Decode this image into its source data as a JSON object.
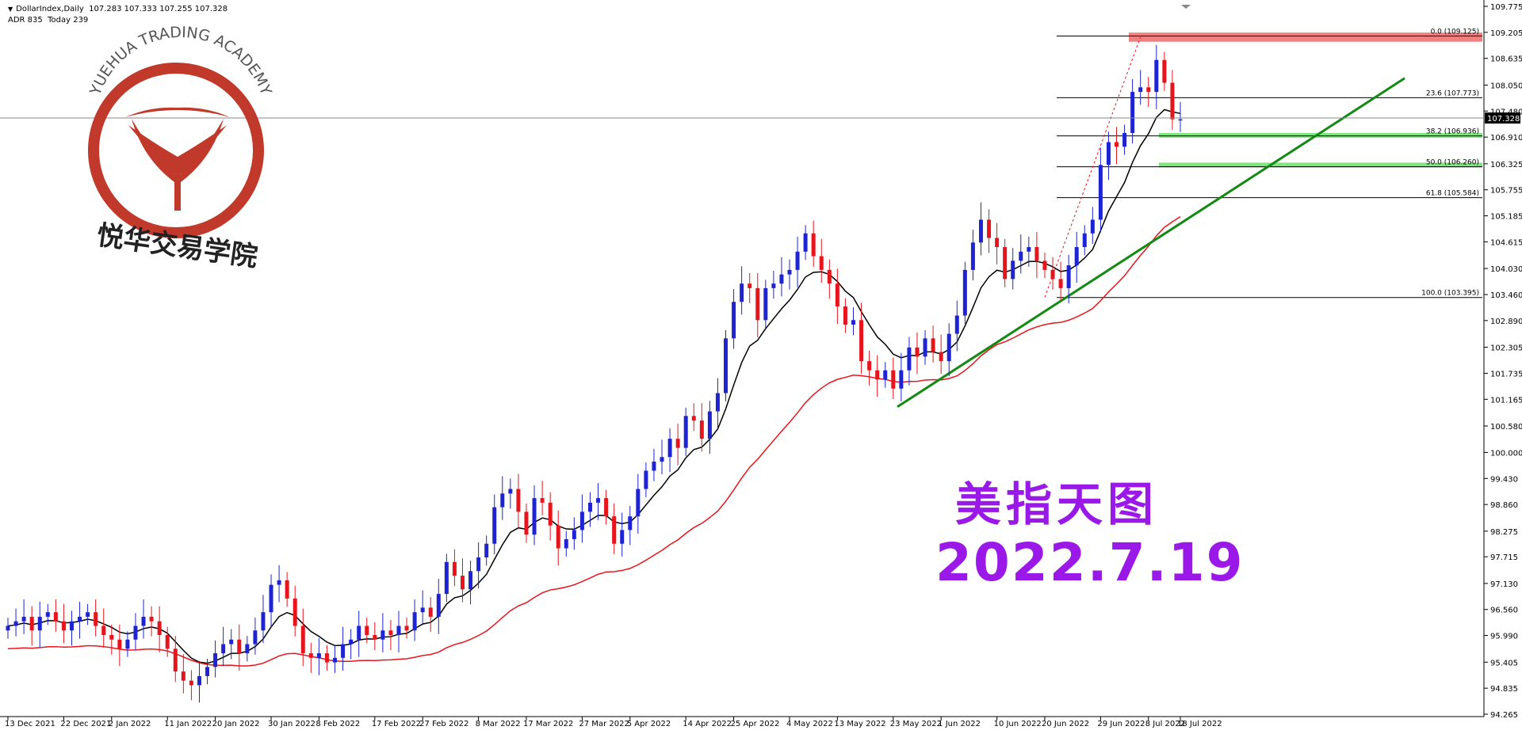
{
  "header": {
    "symbol_line": "DollarIndex,Daily  107.283 107.333 107.255 107.328",
    "stats_line": "ADR 835  Today 239"
  },
  "logo": {
    "arc_text": "YUEHUA TRADING ACADEMY",
    "cn_name": "悦华交易学院",
    "color": "#c0392b"
  },
  "annotation": {
    "title": "美指天图",
    "date": "2022.7.19",
    "color": "#9b19e8"
  },
  "chart_data": {
    "type": "candlestick",
    "title": "DollarIndex,Daily",
    "timeframe": "Daily",
    "ohlc_current": {
      "open": 107.283,
      "high": 107.333,
      "low": 107.255,
      "close": 107.328
    },
    "current_price_label": "107.328",
    "y_ticks": [
      "109.775",
      "109.205",
      "108.635",
      "108.050",
      "107.480",
      "106.910",
      "106.325",
      "105.755",
      "105.185",
      "104.615",
      "104.030",
      "103.460",
      "102.890",
      "102.305",
      "101.735",
      "101.165",
      "100.580",
      "100.000",
      "99.430",
      "98.860",
      "98.275",
      "97.715",
      "97.130",
      "96.560",
      "95.990",
      "95.405",
      "94.835",
      "94.265"
    ],
    "ylim": [
      94.265,
      109.775
    ],
    "x_ticks": [
      "13 Dec 2021",
      "22 Dec 2021",
      "2 Jan 2022",
      "11 Jan 2022",
      "20 Jan 2022",
      "30 Jan 2022",
      "8 Feb 2022",
      "17 Feb 2022",
      "27 Feb 2022",
      "8 Mar 2022",
      "17 Mar 2022",
      "27 Mar 2022",
      "5 Apr 2022",
      "14 Apr 2022",
      "25 Apr 2022",
      "4 May 2022",
      "13 May 2022",
      "23 May 2022",
      "1 Jun 2022",
      "10 Jun 2022",
      "20 Jun 2022",
      "29 Jun 2022",
      "8 Jul 2022",
      "18 Jul 2022"
    ],
    "closes": [
      96.2,
      96.3,
      96.4,
      96.1,
      96.4,
      96.5,
      96.3,
      96.1,
      96.3,
      96.4,
      96.5,
      96.2,
      96.0,
      95.9,
      95.7,
      95.9,
      96.2,
      96.4,
      96.3,
      96.0,
      95.7,
      95.2,
      95.0,
      94.9,
      95.1,
      95.3,
      95.6,
      95.8,
      95.9,
      95.6,
      95.8,
      96.1,
      96.5,
      97.1,
      97.2,
      96.8,
      96.2,
      95.6,
      95.5,
      95.6,
      95.4,
      95.5,
      95.8,
      95.9,
      96.2,
      96.0,
      95.9,
      96.1,
      96.0,
      96.2,
      96.1,
      96.5,
      96.6,
      96.4,
      96.9,
      97.6,
      97.3,
      97.0,
      97.4,
      97.7,
      98.0,
      98.8,
      99.1,
      99.2,
      98.7,
      98.2,
      99.0,
      98.9,
      98.4,
      97.9,
      98.1,
      98.3,
      98.7,
      98.9,
      99.0,
      98.6,
      98.0,
      98.3,
      98.6,
      99.2,
      99.6,
      99.8,
      99.9,
      100.3,
      100.1,
      100.8,
      100.7,
      100.3,
      100.9,
      101.3,
      102.5,
      103.3,
      103.7,
      103.6,
      102.9,
      103.6,
      103.7,
      103.9,
      104.0,
      104.4,
      104.8,
      104.3,
      104.0,
      103.7,
      103.2,
      102.8,
      102.9,
      102.0,
      101.8,
      101.6,
      101.8,
      101.4,
      101.8,
      102.3,
      102.1,
      102.5,
      102.2,
      102.0,
      102.6,
      103.0,
      104.0,
      104.6,
      105.1,
      104.7,
      104.5,
      103.8,
      104.2,
      104.4,
      104.5,
      104.2,
      104.0,
      103.8,
      103.6,
      104.1,
      104.5,
      104.8,
      105.1,
      106.3,
      106.8,
      106.7,
      107.0,
      107.9,
      108.0,
      107.9,
      108.6,
      108.1,
      107.3,
      107.3
    ],
    "ema_fast_name": "EMA black",
    "ema_slow_name": "EMA red",
    "fibonacci": [
      {
        "level": "0.0",
        "price": 109.125,
        "label": "0.0 (109.125)"
      },
      {
        "level": "23.6",
        "price": 107.773,
        "label": "23.6 (107.773)"
      },
      {
        "level": "38.2",
        "price": 106.936,
        "label": "38.2 (106.936)"
      },
      {
        "level": "50.0",
        "price": 106.26,
        "label": "50.0 (106.260)"
      },
      {
        "level": "61.8",
        "price": 105.584,
        "label": "61.8 (105.584)"
      },
      {
        "level": "100.0",
        "price": 103.395,
        "label": "100.0 (103.395)"
      }
    ],
    "zones": [
      {
        "name": "resistance",
        "from": 109.0,
        "to": 109.2,
        "color": "#f08080"
      },
      {
        "name": "support-1",
        "from": 106.9,
        "to": 107.0,
        "color": "#7fe57f"
      },
      {
        "name": "support-2",
        "from": 106.25,
        "to": 106.35,
        "color": "#7fe57f"
      }
    ],
    "trendline_color": "#138a13",
    "up_color": "#1e23d4",
    "down_color": "#e8141c",
    "grid": false
  }
}
